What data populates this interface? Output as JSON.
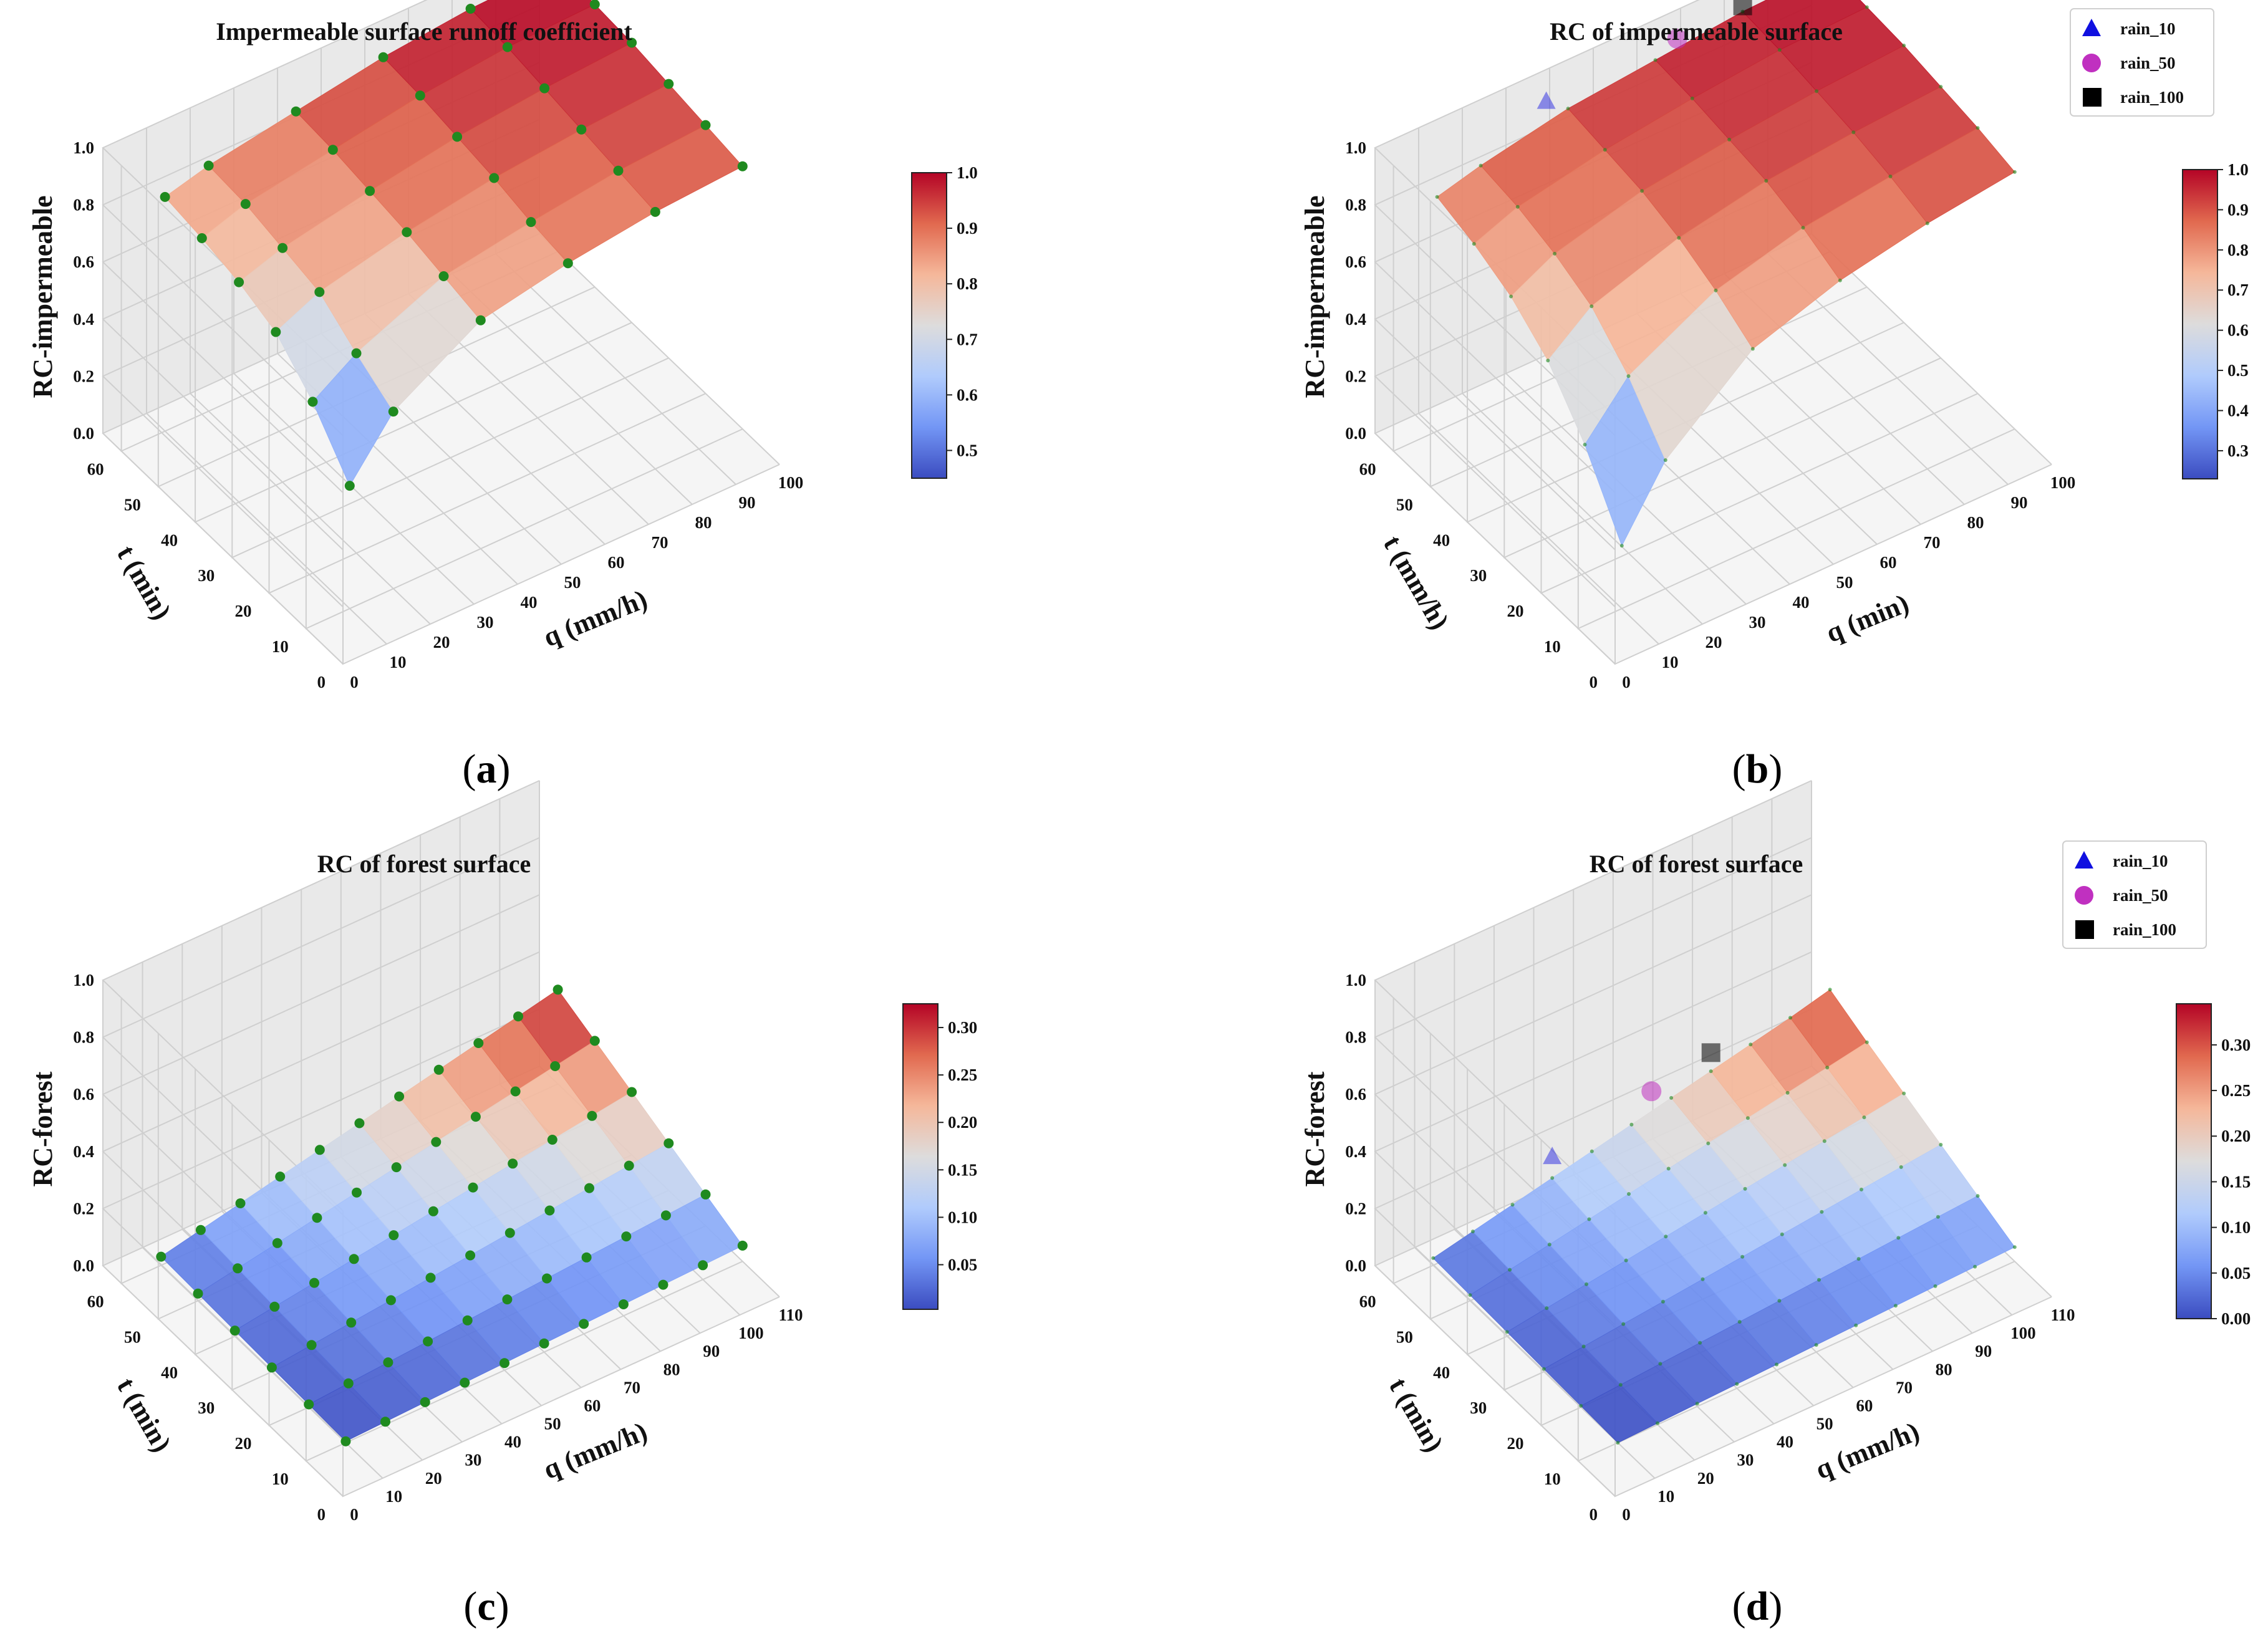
{
  "panels": [
    {
      "id": "a",
      "caption": "a",
      "title": "Impermeable surface runoff coefficient",
      "ylabel": "RC-impermeable",
      "tlabel": "t (min)",
      "qlabel": "q (mm/h)",
      "z_ticks": [
        "0.0",
        "0.2",
        "0.4",
        "0.6",
        "0.8",
        "1.0"
      ],
      "t_ticks": [
        "0",
        "10",
        "20",
        "30",
        "40",
        "50",
        "60"
      ],
      "q_ticks": [
        "0",
        "10",
        "20",
        "30",
        "40",
        "50",
        "60",
        "70",
        "80",
        "90",
        "100"
      ],
      "colorbar_ticks": [
        "0.5",
        "0.6",
        "0.7",
        "0.8",
        "0.9",
        "1.0"
      ],
      "legend": []
    },
    {
      "id": "b",
      "caption": "b",
      "title": "RC of impermeable surface",
      "ylabel": "RC-impermeable",
      "tlabel": "t (mm/h)",
      "qlabel": "q (min)",
      "z_ticks": [
        "0.0",
        "0.2",
        "0.4",
        "0.6",
        "0.8",
        "1.0"
      ],
      "t_ticks": [
        "0",
        "10",
        "20",
        "30",
        "40",
        "50",
        "60"
      ],
      "q_ticks": [
        "0",
        "10",
        "20",
        "30",
        "40",
        "50",
        "60",
        "70",
        "80",
        "90",
        "100"
      ],
      "colorbar_ticks": [
        "0.3",
        "0.4",
        "0.5",
        "0.6",
        "0.7",
        "0.8",
        "0.9",
        "1.0"
      ],
      "legend": [
        "rain_10",
        "rain_50",
        "rain_100"
      ]
    },
    {
      "id": "c",
      "caption": "c",
      "title": "RC of forest surface",
      "ylabel": "RC-forest",
      "tlabel": "t (min)",
      "qlabel": "q (mm/h)",
      "z_ticks": [
        "0.0",
        "0.2",
        "0.4",
        "0.6",
        "0.8",
        "1.0"
      ],
      "t_ticks": [
        "0",
        "10",
        "20",
        "30",
        "40",
        "50",
        "60"
      ],
      "q_ticks": [
        "0",
        "10",
        "20",
        "30",
        "40",
        "50",
        "60",
        "70",
        "80",
        "90",
        "100",
        "110"
      ],
      "colorbar_ticks": [
        "0.05",
        "0.10",
        "0.15",
        "0.20",
        "0.25",
        "0.30"
      ],
      "legend": []
    },
    {
      "id": "d",
      "caption": "d",
      "title": "RC of forest surface",
      "ylabel": "RC-forest",
      "tlabel": "t (min)",
      "qlabel": "q (mm/h)",
      "z_ticks": [
        "0.0",
        "0.2",
        "0.4",
        "0.6",
        "0.8",
        "1.0"
      ],
      "t_ticks": [
        "0",
        "10",
        "20",
        "30",
        "40",
        "50",
        "60"
      ],
      "q_ticks": [
        "0",
        "10",
        "20",
        "30",
        "40",
        "50",
        "60",
        "70",
        "80",
        "90",
        "100",
        "110"
      ],
      "colorbar_ticks": [
        "0.00",
        "0.05",
        "0.10",
        "0.15",
        "0.20",
        "0.25",
        "0.30"
      ],
      "legend": [
        "rain_10",
        "rain_50",
        "rain_100"
      ]
    }
  ],
  "colors": {
    "cmap": [
      "#3b4cc0",
      "#7396f5",
      "#b0cbfc",
      "#dddcdc",
      "#f5b79a",
      "#e1694f",
      "#b40426"
    ],
    "points": "#1f8a1f",
    "rain_10": "#1010e0",
    "rain_50": "#c030c0",
    "rain_100": "#000000"
  },
  "chart_data": [
    {
      "panel": "a",
      "type": "surface",
      "title": "Impermeable surface runoff coefficient",
      "xlabel": "q (mm/h)",
      "ylabel": "t (min)",
      "zlabel": "RC-impermeable",
      "q": [
        10,
        20,
        40,
        60,
        80,
        100
      ],
      "t": [
        10,
        20,
        30,
        40,
        50,
        60
      ],
      "z": [
        [
          0.43,
          0.62,
          0.8,
          0.86,
          0.9,
          0.92
        ],
        [
          0.6,
          0.7,
          0.83,
          0.88,
          0.92,
          0.94
        ],
        [
          0.72,
          0.79,
          0.86,
          0.91,
          0.94,
          0.96
        ],
        [
          0.77,
          0.82,
          0.88,
          0.93,
          0.96,
          0.98
        ],
        [
          0.8,
          0.85,
          0.9,
          0.95,
          0.98,
          0.99
        ],
        [
          0.82,
          0.86,
          0.91,
          0.96,
          0.99,
          1.0
        ]
      ],
      "zlim": [
        0,
        1
      ]
    },
    {
      "panel": "b",
      "type": "surface",
      "title": "RC of impermeable surface",
      "xlabel": "q (min)",
      "ylabel": "t (mm/h)",
      "zlabel": "RC-impermeable",
      "q": [
        10,
        20,
        40,
        60,
        80,
        100
      ],
      "t": [
        10,
        20,
        30,
        40,
        50,
        60
      ],
      "z": [
        [
          0.22,
          0.45,
          0.7,
          0.8,
          0.86,
          0.9
        ],
        [
          0.45,
          0.62,
          0.78,
          0.86,
          0.9,
          0.93
        ],
        [
          0.62,
          0.74,
          0.84,
          0.9,
          0.93,
          0.95
        ],
        [
          0.72,
          0.8,
          0.88,
          0.92,
          0.95,
          0.97
        ],
        [
          0.78,
          0.84,
          0.9,
          0.94,
          0.97,
          0.98
        ],
        [
          0.82,
          0.86,
          0.92,
          0.95,
          0.98,
          0.99
        ]
      ],
      "points": [
        {
          "name": "rain_10",
          "q": 35,
          "t": 60,
          "z": 0.98
        },
        {
          "name": "rain_50",
          "q": 65,
          "t": 60,
          "z": 0.99
        },
        {
          "name": "rain_100",
          "q": 80,
          "t": 60,
          "z": 1.0
        }
      ],
      "zlim": [
        0,
        1
      ]
    },
    {
      "panel": "c",
      "type": "surface",
      "title": "RC of forest surface",
      "xlabel": "q (mm/h)",
      "ylabel": "t (min)",
      "zlabel": "RC-forest",
      "q": [
        10,
        20,
        30,
        40,
        50,
        60,
        70,
        80,
        90,
        100,
        110
      ],
      "t": [
        10,
        20,
        30,
        40,
        50,
        60
      ],
      "z": [
        [
          0.005,
          0.01,
          0.015,
          0.02,
          0.025,
          0.03,
          0.035,
          0.04,
          0.045,
          0.05,
          0.055
        ],
        [
          0.01,
          0.02,
          0.03,
          0.04,
          0.05,
          0.06,
          0.07,
          0.08,
          0.09,
          0.1,
          0.11
        ],
        [
          0.015,
          0.03,
          0.045,
          0.06,
          0.075,
          0.09,
          0.105,
          0.12,
          0.135,
          0.15,
          0.165
        ],
        [
          0.02,
          0.04,
          0.06,
          0.08,
          0.1,
          0.12,
          0.14,
          0.16,
          0.18,
          0.2,
          0.22
        ],
        [
          0.025,
          0.05,
          0.075,
          0.1,
          0.125,
          0.15,
          0.175,
          0.2,
          0.225,
          0.25,
          0.275
        ],
        [
          0.03,
          0.06,
          0.09,
          0.12,
          0.15,
          0.18,
          0.21,
          0.24,
          0.27,
          0.3,
          0.33
        ]
      ],
      "zlim": [
        0,
        1
      ]
    },
    {
      "panel": "d",
      "type": "surface",
      "title": "RC of forest surface",
      "xlabel": "q (mm/h)",
      "ylabel": "t (min)",
      "zlabel": "RC-forest",
      "q": [
        10,
        20,
        30,
        40,
        50,
        60,
        70,
        80,
        90,
        100,
        110
      ],
      "t": [
        10,
        20,
        30,
        40,
        50,
        60
      ],
      "z": [
        [
          0.0,
          0.005,
          0.01,
          0.015,
          0.02,
          0.025,
          0.03,
          0.035,
          0.04,
          0.045,
          0.05
        ],
        [
          0.005,
          0.015,
          0.025,
          0.035,
          0.045,
          0.055,
          0.065,
          0.075,
          0.085,
          0.095,
          0.105
        ],
        [
          0.01,
          0.025,
          0.04,
          0.055,
          0.07,
          0.085,
          0.1,
          0.115,
          0.13,
          0.145,
          0.16
        ],
        [
          0.015,
          0.035,
          0.055,
          0.075,
          0.095,
          0.115,
          0.135,
          0.155,
          0.175,
          0.195,
          0.215
        ],
        [
          0.02,
          0.045,
          0.07,
          0.095,
          0.12,
          0.145,
          0.17,
          0.195,
          0.22,
          0.245,
          0.27
        ],
        [
          0.025,
          0.055,
          0.085,
          0.115,
          0.145,
          0.175,
          0.205,
          0.235,
          0.265,
          0.295,
          0.33
        ]
      ],
      "points": [
        {
          "name": "rain_10",
          "q": 40,
          "t": 60,
          "z": 0.19
        },
        {
          "name": "rain_50",
          "q": 65,
          "t": 60,
          "z": 0.26
        },
        {
          "name": "rain_100",
          "q": 80,
          "t": 60,
          "z": 0.3
        }
      ],
      "zlim": [
        0,
        1
      ]
    }
  ]
}
